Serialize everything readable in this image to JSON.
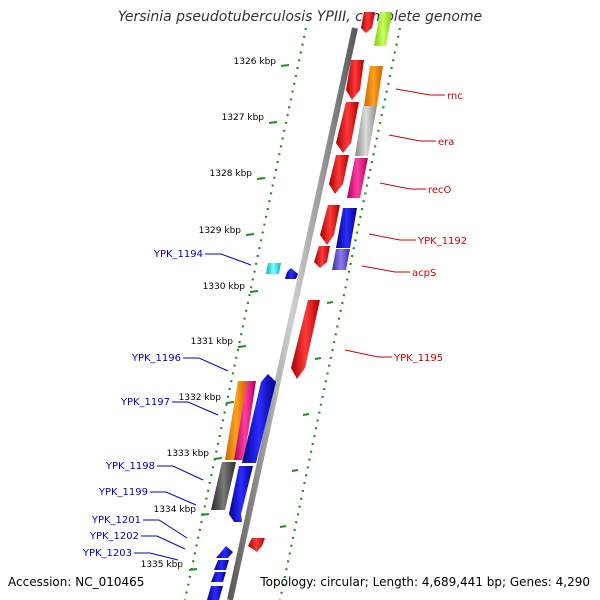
{
  "title": "Yersinia pseudotuberculosis YPIII, complete genome",
  "footer": {
    "accession": "Accession: NC_010465",
    "summary": "Topology: circular; Length: 4,689,441 bp; Genes: 4,290"
  },
  "ticks": [
    {
      "label": "1326 kbp",
      "major": true
    },
    {
      "label": "1327 kbp",
      "major": true
    },
    {
      "label": "1328 kbp",
      "major": true
    },
    {
      "label": "1329 kbp",
      "major": true
    },
    {
      "label": "1330 kbp",
      "major": true
    },
    {
      "label": "1331 kbp",
      "major": true
    },
    {
      "label": "1332 kbp",
      "major": true
    },
    {
      "label": "1333 kbp",
      "major": true
    },
    {
      "label": "1334 kbp",
      "major": true
    },
    {
      "label": "1335 kbp",
      "major": true
    }
  ],
  "right_labels": [
    "rnc",
    "era",
    "recO",
    "YPK_1192",
    "acpS",
    "YPK_1195"
  ],
  "left_labels": [
    "YPK_1194",
    "YPK_1196",
    "YPK_1197",
    "YPK_1198",
    "YPK_1199",
    "YPK_1201",
    "YPK_1202",
    "YPK_1203"
  ],
  "colors": {
    "forward": "#0000ff",
    "reverse": "#ff0000",
    "orange": "#ff8c00",
    "pink": "#ff1493",
    "gray": "#bfbfbf",
    "darkgray": "#555555",
    "lime": "#adff2f",
    "cyan": "#00ffff",
    "slate": "#6a5acd",
    "backbone": "#888888",
    "tick": "#228b22",
    "right_label": "#cc0000",
    "left_label": "#0000cc"
  }
}
